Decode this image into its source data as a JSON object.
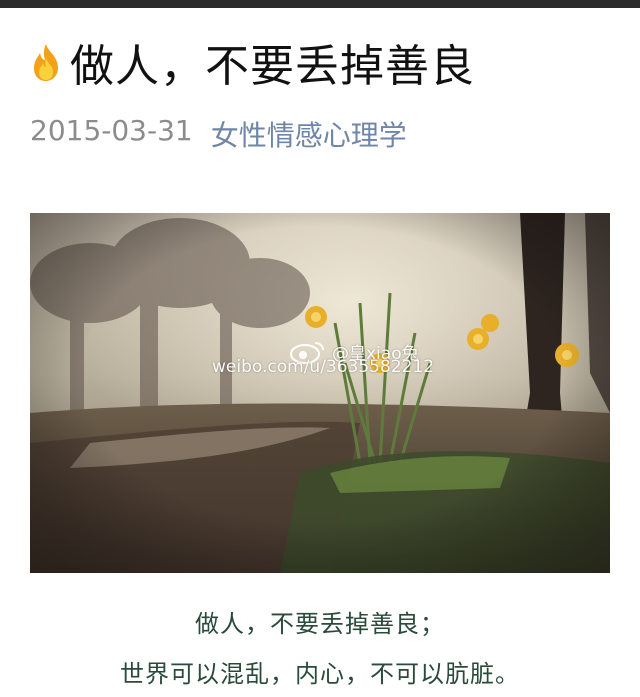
{
  "article": {
    "title": "做人，不要丢掉善良",
    "date": "2015-03-31",
    "source": "女性情感心理学"
  },
  "image": {
    "watermark_line1": "@皇xiao兔",
    "watermark_line2": "weibo.com/u/3635582212"
  },
  "caption": {
    "line1": "做人，不要丢掉善良；",
    "line2": "世界可以混乱，内心，不可以肮脏。"
  },
  "icons": {
    "title_icon": "flame-icon",
    "watermark_icon": "weibo-eye-icon"
  },
  "colors": {
    "source_link": "#6f86a8",
    "date": "#8c8c8c",
    "caption_text": "#2a4a3a"
  }
}
